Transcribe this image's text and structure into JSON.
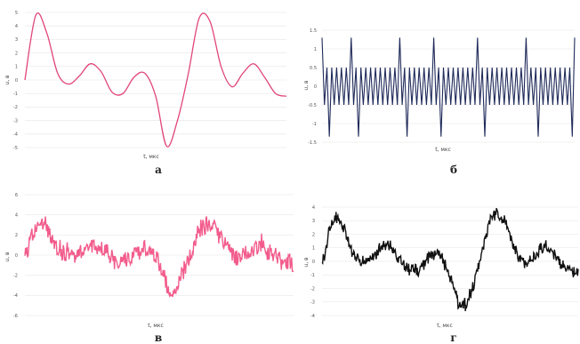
{
  "colors": {
    "a": "#e0457a",
    "b": "#1f2a5a",
    "v": "#f25c8c",
    "g": "#111111"
  },
  "chart_data": [
    {
      "id": "a",
      "type": "line",
      "caption": "а",
      "xlabel": "t, мкс",
      "ylabel": "u, в",
      "ylim": [
        -5,
        5
      ],
      "yticks": [
        "5",
        "4",
        "3",
        "2",
        "1",
        "0",
        "-1",
        "-2",
        "-3",
        "-4",
        "-5"
      ],
      "series": [
        {
          "name": "",
          "style": "smooth",
          "y": [
            0.0,
            4.8,
            3.5,
            0.5,
            -0.3,
            0.3,
            1.2,
            0.6,
            -0.9,
            -1.0,
            0.2,
            0.5,
            -1.2,
            -4.9,
            -3.0,
            0.5,
            4.6,
            4.3,
            1.0,
            -0.5,
            0.5,
            1.2,
            0.2,
            -1.0,
            -1.2
          ]
        }
      ]
    },
    {
      "id": "b",
      "type": "line",
      "caption": "б",
      "xlabel": "t, мкс",
      "ylabel": "u, в",
      "ylim": [
        -1.5,
        1.5
      ],
      "yticks": [
        "1.5",
        "1",
        "0.5",
        "0",
        "-0.5",
        "-1",
        "-1.5"
      ],
      "series": [
        {
          "name": "",
          "style": "sawtooth",
          "periods": 52,
          "top": 0.5,
          "bottom": -0.5,
          "spikes_up": [
            0,
            6,
            16,
            23,
            32,
            42,
            52
          ],
          "spikes_down": [
            1,
            7,
            17,
            24,
            33,
            44,
            51
          ],
          "spike_top": 1.3,
          "spike_bottom": -1.35
        }
      ]
    },
    {
      "id": "v",
      "type": "line",
      "caption": "в",
      "xlabel": "t, мкс",
      "ylabel": "u, в",
      "ylim": [
        -6,
        6
      ],
      "yticks": [
        "6",
        "4",
        "2",
        "0",
        "-2",
        "-4",
        "-6"
      ],
      "series": [
        {
          "name": "",
          "style": "noisy",
          "noise": 1.2,
          "y": [
            0.0,
            2.8,
            2.5,
            0.5,
            0.2,
            0.6,
            1.1,
            0.6,
            -0.5,
            -0.5,
            0.2,
            0.5,
            -1.0,
            -3.6,
            -2.2,
            0.6,
            3.0,
            2.6,
            1.0,
            -0.3,
            0.4,
            1.0,
            0.3,
            -0.6,
            -0.8
          ]
        }
      ]
    },
    {
      "id": "g",
      "type": "line",
      "caption": "г",
      "xlabel": "t, мкс",
      "ylabel": "u, в",
      "ylim": [
        -4,
        4
      ],
      "yticks": [
        "4",
        "3",
        "2",
        "1",
        "0",
        "-1",
        "-2",
        "-3",
        "-4"
      ],
      "series": [
        {
          "name": "",
          "style": "noisy",
          "noise": 0.55,
          "y": [
            0.0,
            3.0,
            2.4,
            0.5,
            0.0,
            0.6,
            1.2,
            0.5,
            -0.5,
            -0.6,
            0.2,
            0.5,
            -1.2,
            -3.3,
            -2.2,
            0.8,
            3.4,
            3.0,
            1.0,
            -0.3,
            0.5,
            1.1,
            0.2,
            -0.6,
            -0.8
          ]
        }
      ]
    }
  ]
}
